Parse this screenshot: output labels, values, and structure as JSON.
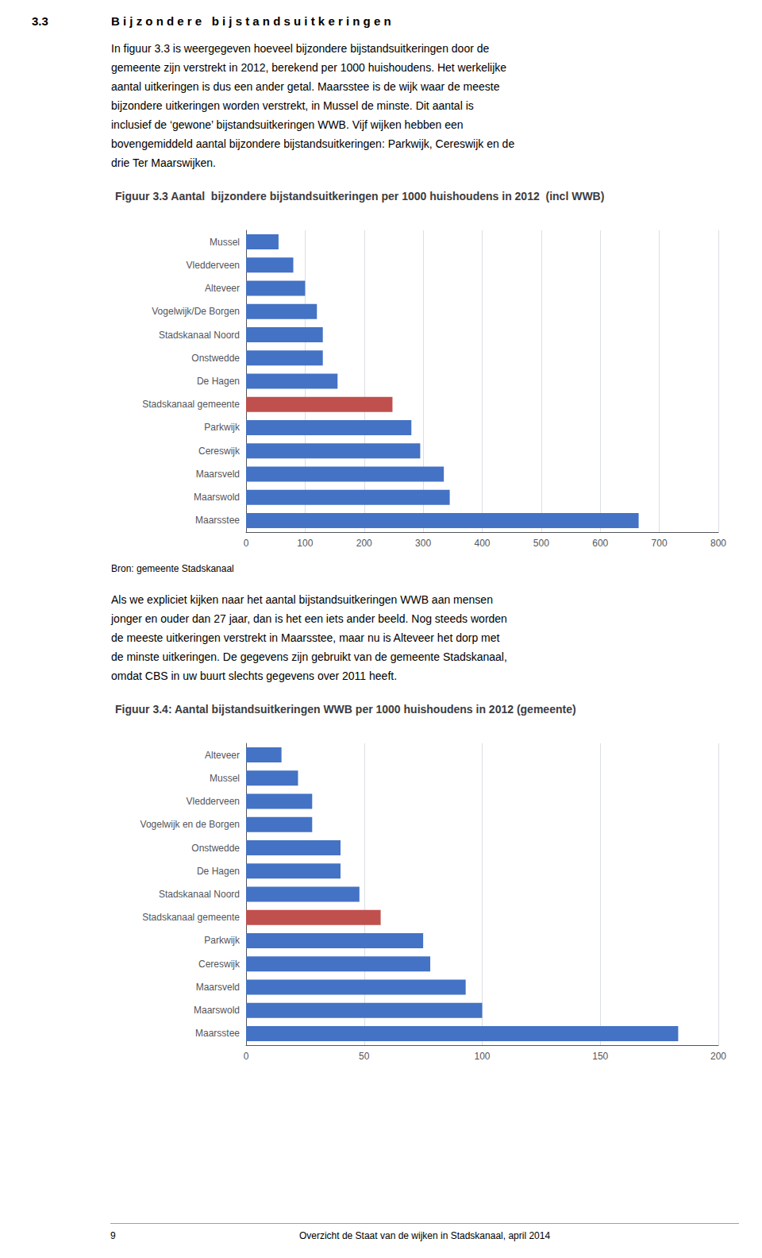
{
  "section_number": "3.3",
  "section_title": "B i j z o n d e r e   b i j s t a n d s u i t k e r i n g e n",
  "paragraphs": [
    [
      "In figuur 3.3 is weergegeven hoeveel bijzondere bijstandsuitkeringen door de",
      "gemeente zijn verstrekt in 2012, berekend per 1000 huishoudens. Het werkelijke",
      "aantal uitkeringen is dus een ander getal. Maarsstee is de wijk waar de meeste",
      "bijzondere uitkeringen worden verstrekt, in Mussel de minste. Dit aantal is",
      "inclusief de ‘gewone’ bijstandsuitkeringen WWB. Vijf wijken hebben een",
      "bovengemiddeld aantal bijzondere bijstandsuitkeringen: Parkwijk, Cereswijk en de",
      "drie Ter Maarswijken."
    ],
    [
      "Als we expliciet kijken naar het aantal bijstandsuitkeringen WWB aan mensen",
      "jonger en ouder dan 27 jaar, dan is het een iets ander beeld. Nog steeds worden",
      "de meeste uitkeringen verstrekt in Maarsstee, maar nu is Alteveer het dorp met",
      "de minste uitkeringen. De gegevens zijn gebruikt van de gemeente Stadskanaal,",
      "omdat CBS in uw buurt slechts gegevens over 2011 heeft."
    ]
  ],
  "page_number": "9",
  "footer": "Overzicht de Staat van de wijken in Stadskanaal, april 2014",
  "chart_data": [
    {
      "type": "bar",
      "orientation": "horizontal",
      "title": "Figuur 3.3 Aantal  bijzondere bijstandsuitkeringen per 1000 huishoudens in 2012  (incl WWB)",
      "categories": [
        "Mussel",
        "Vledderveen",
        "Alteveer",
        "Vogelwijk/De Borgen",
        "Stadskanaal Noord",
        "Onstwedde",
        "De Hagen",
        "Stadskanaal gemeente",
        "Parkwijk",
        "Cereswijk",
        "Maarsveld",
        "Maarswold",
        "Maarsstee"
      ],
      "values": [
        55,
        80,
        100,
        120,
        130,
        130,
        155,
        248,
        280,
        295,
        335,
        345,
        665
      ],
      "colors": [
        "#4472c4",
        "#4472c4",
        "#4472c4",
        "#4472c4",
        "#4472c4",
        "#4472c4",
        "#4472c4",
        "#c0504d",
        "#4472c4",
        "#4472c4",
        "#4472c4",
        "#4472c4",
        "#4472c4"
      ],
      "xlim": [
        0,
        800
      ],
      "xticks": [
        0,
        100,
        200,
        300,
        400,
        500,
        600,
        700,
        800
      ],
      "grid": true,
      "annotations": [
        "Bron: gemeente Stadskanaal"
      ]
    },
    {
      "type": "bar",
      "orientation": "horizontal",
      "title": "Figuur 3.4: Aantal bijstandsuitkeringen WWB per 1000 huishoudens in 2012 (gemeente)",
      "categories": [
        "Alteveer",
        "Mussel",
        "Vledderveen",
        "Vogelwijk en de Borgen",
        "Onstwedde",
        "De Hagen",
        "Stadskanaal Noord",
        "Stadskanaal gemeente",
        "Parkwijk",
        "Cereswijk",
        "Maarsveld",
        "Maarswold",
        "Maarsstee"
      ],
      "values": [
        15,
        22,
        28,
        28,
        40,
        40,
        48,
        57,
        75,
        78,
        93,
        100,
        183
      ],
      "colors": [
        "#4472c4",
        "#4472c4",
        "#4472c4",
        "#4472c4",
        "#4472c4",
        "#4472c4",
        "#4472c4",
        "#c0504d",
        "#4472c4",
        "#4472c4",
        "#4472c4",
        "#4472c4",
        "#4472c4"
      ],
      "xlim": [
        0,
        200
      ],
      "xticks": [
        0,
        50,
        100,
        150,
        200
      ],
      "grid": true
    }
  ]
}
